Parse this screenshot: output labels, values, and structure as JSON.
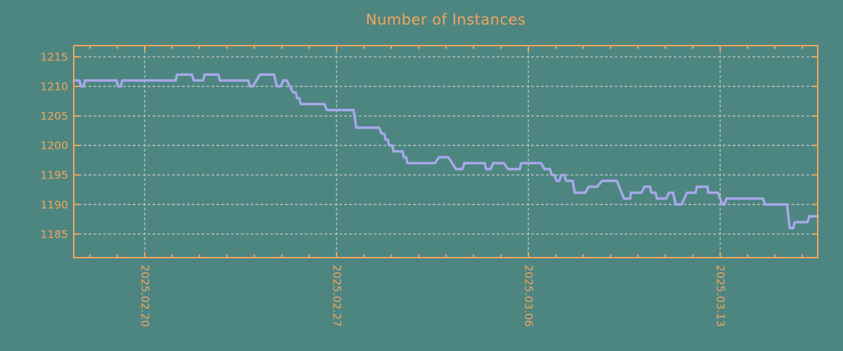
{
  "window": {
    "background_color": "#4d8681"
  },
  "colors": {
    "accent_orange": "#f4a55c",
    "line_purple": "#a8a8ea",
    "grid_gray": "#c3c8c6"
  },
  "chart_data": {
    "type": "line",
    "title": "Number of Instances",
    "xlabel": "",
    "ylabel": "",
    "grid": true,
    "legend": false,
    "x_unit": "days from left edge of plot",
    "x_range": [
      0,
      27.15
    ],
    "ylim": [
      1181,
      1216.9
    ],
    "y_ticks": [
      1185,
      1190,
      1195,
      1200,
      1205,
      1210,
      1215
    ],
    "x_major_ticks": [
      {
        "day": 2.59,
        "label": "2025.02.20"
      },
      {
        "day": 9.59,
        "label": "2025.02.27"
      },
      {
        "day": 16.59,
        "label": "2025.03.06"
      },
      {
        "day": 23.59,
        "label": "2025.03.13"
      }
    ],
    "x_minor_ticks": {
      "start_day": 0.59,
      "interval_days": 1,
      "count": 27
    },
    "series": [
      {
        "name": "instances",
        "color": "#a8a8ea",
        "segments_day_day_value": [
          [
            0.0,
            0.21,
            1211
          ],
          [
            0.26,
            0.36,
            1210
          ],
          [
            0.41,
            1.56,
            1211
          ],
          [
            1.62,
            1.72,
            1210
          ],
          [
            1.77,
            3.72,
            1211
          ],
          [
            3.77,
            4.31,
            1212
          ],
          [
            4.38,
            4.72,
            1211
          ],
          [
            4.77,
            5.28,
            1212
          ],
          [
            5.33,
            6.36,
            1211
          ],
          [
            6.44,
            6.54,
            1210
          ],
          [
            6.79,
            7.31,
            1212
          ],
          [
            7.41,
            7.56,
            1210
          ],
          [
            7.64,
            7.77,
            1211
          ],
          [
            8.0,
            8.1,
            1209
          ],
          [
            8.15,
            8.23,
            1208
          ],
          [
            8.28,
            9.15,
            1207
          ],
          [
            9.23,
            10.21,
            1206
          ],
          [
            10.31,
            11.15,
            1203
          ],
          [
            11.23,
            11.33,
            1202
          ],
          [
            11.38,
            11.46,
            1201
          ],
          [
            11.51,
            11.62,
            1200
          ],
          [
            11.67,
            12.0,
            1199
          ],
          [
            12.05,
            12.13,
            1198
          ],
          [
            12.18,
            13.18,
            1197
          ],
          [
            13.33,
            13.67,
            1198
          ],
          [
            13.95,
            14.18,
            1196
          ],
          [
            14.26,
            15.0,
            1197
          ],
          [
            15.05,
            15.21,
            1196
          ],
          [
            15.31,
            15.69,
            1197
          ],
          [
            15.85,
            16.28,
            1196
          ],
          [
            16.33,
            17.05,
            1197
          ],
          [
            17.18,
            17.38,
            1196
          ],
          [
            17.44,
            17.54,
            1195
          ],
          [
            17.62,
            17.72,
            1194
          ],
          [
            17.79,
            17.9,
            1195
          ],
          [
            17.97,
            18.21,
            1194
          ],
          [
            18.28,
            18.67,
            1192
          ],
          [
            18.79,
            19.1,
            1193
          ],
          [
            19.28,
            19.82,
            1194
          ],
          [
            20.08,
            20.31,
            1191
          ],
          [
            20.33,
            20.72,
            1192
          ],
          [
            20.82,
            21.03,
            1193
          ],
          [
            21.08,
            21.23,
            1192
          ],
          [
            21.28,
            21.62,
            1191
          ],
          [
            21.72,
            21.87,
            1192
          ],
          [
            21.97,
            22.18,
            1190
          ],
          [
            22.38,
            22.69,
            1192
          ],
          [
            22.74,
            23.13,
            1193
          ],
          [
            23.15,
            23.51,
            1192
          ],
          [
            23.67,
            23.74,
            1190
          ],
          [
            23.82,
            25.15,
            1191
          ],
          [
            25.23,
            26.03,
            1190
          ],
          [
            26.13,
            26.26,
            1186
          ],
          [
            26.31,
            26.77,
            1187
          ],
          [
            26.85,
            27.15,
            1188
          ]
        ]
      }
    ]
  }
}
